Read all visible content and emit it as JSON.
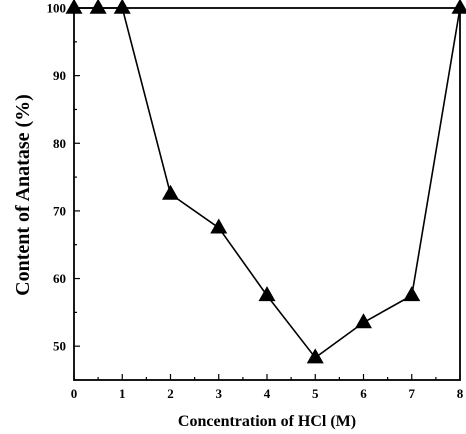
{
  "chart_data": {
    "type": "line",
    "title": "",
    "xlabel": "Concentration of HCl (M)",
    "ylabel": "Content of Anatase (%)",
    "x": [
      0,
      0.5,
      1,
      2,
      3,
      4,
      5,
      6,
      7,
      8
    ],
    "series": [
      {
        "values": [
          100,
          100,
          100,
          72.5,
          67.5,
          57.5,
          48.3,
          53.5,
          57.5,
          100
        ]
      }
    ],
    "x_ticks": [
      0,
      1,
      2,
      3,
      4,
      5,
      6,
      7,
      8
    ],
    "y_ticks": [
      50,
      60,
      70,
      80,
      90,
      100
    ],
    "xlim": [
      0,
      8
    ],
    "ylim": [
      45,
      100
    ],
    "marker": "filled-triangle",
    "line_color": "#000000",
    "marker_color": "#000000",
    "grid": false,
    "legend": "none"
  }
}
